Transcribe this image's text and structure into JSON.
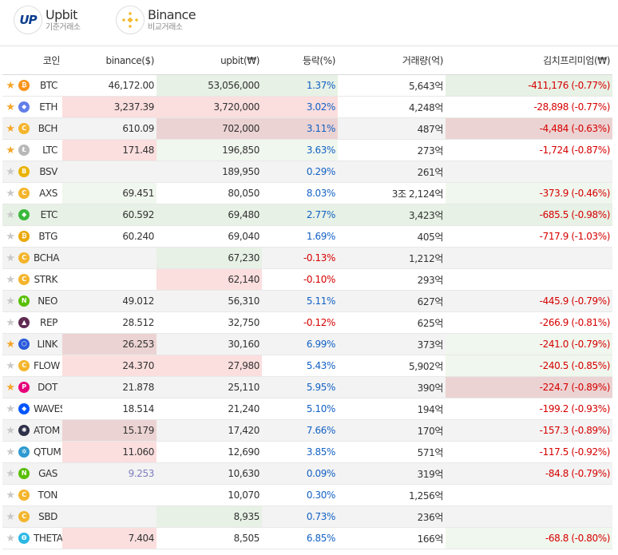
{
  "exchanges": {
    "upbit": {
      "name": "Upbit",
      "sub": "기준거래소",
      "logo": "UP"
    },
    "binance": {
      "name": "Binance",
      "sub": "비교거래소"
    }
  },
  "columns": {
    "coin": "코인",
    "binance": "binance($)",
    "upbit": "upbit(₩)",
    "change": "등락(%)",
    "volume": "거래량(억)",
    "premium": "김치프리미엄(₩)"
  },
  "colors": {
    "up": "#1261c4",
    "down": "#d60000",
    "star_on": "#f4a62a",
    "star_off": "#c8c8c8"
  },
  "rows": [
    {
      "sym": "BTC",
      "star": true,
      "icon": "bitcoin-icon",
      "color": "#f7931a",
      "glyph": "₿",
      "binance": "46,172.00",
      "upbit": "53,056,000",
      "change": "1.37%",
      "dir": "up",
      "volume": "5,643억",
      "premium": "-411,176 (-0.77%)",
      "bg": [
        "",
        "",
        "bg-g",
        "bg-g",
        "",
        "bg-g"
      ]
    },
    {
      "sym": "ETH",
      "star": true,
      "icon": "ethereum-icon",
      "color": "#627eea",
      "glyph": "◆",
      "binance": "3,237.39",
      "upbit": "3,720,000",
      "change": "3.02%",
      "dir": "up",
      "volume": "4,248억",
      "premium": "-28,898 (-0.77%)",
      "bg": [
        "",
        "bg-r",
        "bg-r",
        "bg-r",
        "",
        ""
      ]
    },
    {
      "sym": "BCH",
      "star": true,
      "icon": "bitcoin-cash-icon",
      "color": "#f4b52c",
      "glyph": "C",
      "binance": "610.09",
      "upbit": "702,000",
      "change": "3.11%",
      "dir": "up",
      "volume": "487억",
      "premium": "-4,484 (-0.63%)",
      "bg": [
        "bg-gray",
        "bg-gray",
        "bg-rd",
        "bg-rd",
        "bg-gray",
        "bg-rd"
      ]
    },
    {
      "sym": "LTC",
      "star": true,
      "icon": "litecoin-icon",
      "color": "#b8b8b8",
      "glyph": "Ł",
      "binance": "171.48",
      "upbit": "196,850",
      "change": "3.63%",
      "dir": "up",
      "volume": "273억",
      "premium": "-1,724 (-0.87%)",
      "bg": [
        "",
        "bg-r",
        "bg-gl",
        "bg-gl",
        "",
        ""
      ]
    },
    {
      "sym": "BSV",
      "star": false,
      "icon": "bitcoin-sv-icon",
      "color": "#eab300",
      "glyph": "B",
      "binance": "",
      "upbit": "189,950",
      "change": "0.29%",
      "dir": "up",
      "volume": "261억",
      "premium": "",
      "bg": [
        "bg-gray",
        "bg-gray",
        "bg-gray",
        "bg-gray",
        "bg-gray",
        "bg-gray"
      ]
    },
    {
      "sym": "AXS",
      "star": false,
      "icon": "axie-icon",
      "color": "#f4b52c",
      "glyph": "C",
      "binance": "69.451",
      "upbit": "80,050",
      "change": "8.03%",
      "dir": "up",
      "volume": "3조 2,124억",
      "premium": "-373.9 (-0.46%)",
      "bg": [
        "",
        "bg-gl",
        "",
        "",
        "",
        "bg-gl"
      ]
    },
    {
      "sym": "ETC",
      "star": false,
      "icon": "ethereum-classic-icon",
      "color": "#3ab83a",
      "glyph": "◆",
      "binance": "60.592",
      "upbit": "69,480",
      "change": "2.77%",
      "dir": "up",
      "volume": "3,423억",
      "premium": "-685.5 (-0.98%)",
      "bg": [
        "bg-g",
        "bg-g",
        "bg-g",
        "bg-g",
        "bg-g",
        "bg-g"
      ]
    },
    {
      "sym": "BTG",
      "star": false,
      "icon": "bitcoin-gold-icon",
      "color": "#eba809",
      "glyph": "₿",
      "binance": "60.240",
      "upbit": "69,040",
      "change": "1.69%",
      "dir": "up",
      "volume": "405억",
      "premium": "-717.9 (-1.03%)",
      "bg": [
        "",
        "",
        "",
        "",
        "",
        ""
      ]
    },
    {
      "sym": "BCHA",
      "star": false,
      "icon": "bcha-icon",
      "color": "#f4b52c",
      "glyph": "C",
      "binance": "",
      "upbit": "67,230",
      "change": "-0.13%",
      "dir": "down",
      "volume": "1,212억",
      "premium": "",
      "bg": [
        "bg-gray",
        "bg-gray",
        "bg-g",
        "bg-gray",
        "bg-gray",
        "bg-gray"
      ]
    },
    {
      "sym": "STRK",
      "star": false,
      "icon": "strike-icon",
      "color": "#f4b52c",
      "glyph": "C",
      "binance": "",
      "upbit": "62,140",
      "change": "-0.10%",
      "dir": "down",
      "volume": "293억",
      "premium": "",
      "bg": [
        "",
        "",
        "bg-r",
        "",
        "",
        ""
      ]
    },
    {
      "sym": "NEO",
      "star": false,
      "icon": "neo-icon",
      "color": "#58bf00",
      "glyph": "N",
      "binance": "49.012",
      "upbit": "56,310",
      "change": "5.11%",
      "dir": "up",
      "volume": "627억",
      "premium": "-445.9 (-0.79%)",
      "bg": [
        "bg-gray",
        "bg-gray",
        "bg-gray",
        "bg-gray",
        "bg-gray",
        "bg-gray"
      ]
    },
    {
      "sym": "REP",
      "star": false,
      "icon": "augur-icon",
      "color": "#602a52",
      "glyph": "▲",
      "binance": "28.512",
      "upbit": "32,750",
      "change": "-0.12%",
      "dir": "down",
      "volume": "625억",
      "premium": "-266.9 (-0.81%)",
      "bg": [
        "",
        "",
        "",
        "",
        "",
        ""
      ]
    },
    {
      "sym": "LINK",
      "star": true,
      "icon": "chainlink-icon",
      "color": "#2a5ada",
      "glyph": "⬡",
      "binance": "26.253",
      "upbit": "30,160",
      "change": "6.99%",
      "dir": "up",
      "volume": "373억",
      "premium": "-241.0 (-0.79%)",
      "bg": [
        "bg-gray",
        "bg-rd",
        "bg-gray",
        "bg-gray",
        "bg-gray",
        "bg-gl"
      ]
    },
    {
      "sym": "FLOW",
      "star": false,
      "icon": "flow-icon",
      "color": "#f4b52c",
      "glyph": "C",
      "binance": "24.370",
      "upbit": "27,980",
      "change": "5.43%",
      "dir": "up",
      "volume": "5,902억",
      "premium": "-240.5 (-0.85%)",
      "bg": [
        "",
        "bg-r",
        "bg-r",
        "",
        "",
        "bg-gl"
      ]
    },
    {
      "sym": "DOT",
      "star": true,
      "icon": "polkadot-icon",
      "color": "#e6007a",
      "glyph": "P",
      "binance": "21.878",
      "upbit": "25,110",
      "change": "5.95%",
      "dir": "up",
      "volume": "390억",
      "premium": "-224.7 (-0.89%)",
      "bg": [
        "bg-gray",
        "bg-gray",
        "bg-gray",
        "bg-gray",
        "bg-gray",
        "bg-rd"
      ]
    },
    {
      "sym": "WAVES",
      "star": false,
      "icon": "waves-icon",
      "color": "#0055ff",
      "glyph": "◆",
      "binance": "18.514",
      "upbit": "21,240",
      "change": "5.10%",
      "dir": "up",
      "volume": "194억",
      "premium": "-199.2 (-0.93%)",
      "bg": [
        "",
        "",
        "",
        "",
        "",
        ""
      ]
    },
    {
      "sym": "ATOM",
      "star": false,
      "icon": "cosmos-icon",
      "color": "#2e3148",
      "glyph": "✺",
      "binance": "15.179",
      "upbit": "17,420",
      "change": "7.66%",
      "dir": "up",
      "volume": "170억",
      "premium": "-157.3 (-0.89%)",
      "bg": [
        "bg-gray",
        "bg-rd",
        "bg-gray",
        "bg-gray",
        "bg-gray",
        "bg-gray"
      ]
    },
    {
      "sym": "QTUM",
      "star": false,
      "icon": "qtum-icon",
      "color": "#2e9ad0",
      "glyph": "✲",
      "binance": "11.060",
      "upbit": "12,690",
      "change": "3.85%",
      "dir": "up",
      "volume": "571억",
      "premium": "-117.5 (-0.92%)",
      "bg": [
        "",
        "bg-r",
        "",
        "",
        "",
        ""
      ]
    },
    {
      "sym": "GAS",
      "star": false,
      "icon": "gas-icon",
      "color": "#58bf00",
      "glyph": "N",
      "binance": "9.253",
      "upbit": "10,630",
      "change": "0.09%",
      "dir": "up",
      "volume": "319억",
      "premium": "-84.8 (-0.79%)",
      "bg": [
        "bg-gray",
        "bg-gray",
        "bg-gray",
        "bg-gray",
        "bg-gray",
        "bg-gray"
      ],
      "binance_muted": true
    },
    {
      "sym": "TON",
      "star": false,
      "icon": "ton-icon",
      "color": "#f4b52c",
      "glyph": "C",
      "binance": "",
      "upbit": "10,070",
      "change": "0.30%",
      "dir": "up",
      "volume": "1,256억",
      "premium": "",
      "bg": [
        "",
        "",
        "",
        "",
        "",
        ""
      ]
    },
    {
      "sym": "SBD",
      "star": false,
      "icon": "steem-dollar-icon",
      "color": "#f4b52c",
      "glyph": "C",
      "binance": "",
      "upbit": "8,935",
      "change": "0.73%",
      "dir": "up",
      "volume": "236억",
      "premium": "",
      "bg": [
        "bg-gray",
        "bg-gray",
        "bg-g",
        "bg-gray",
        "bg-gray",
        "bg-gray"
      ]
    },
    {
      "sym": "THETA",
      "star": false,
      "icon": "theta-icon",
      "color": "#2ab8e6",
      "glyph": "Θ",
      "binance": "7.404",
      "upbit": "8,505",
      "change": "6.85%",
      "dir": "up",
      "volume": "166억",
      "premium": "-68.8 (-0.80%)",
      "bg": [
        "",
        "bg-r",
        "",
        "",
        "",
        "bg-gl"
      ]
    }
  ]
}
